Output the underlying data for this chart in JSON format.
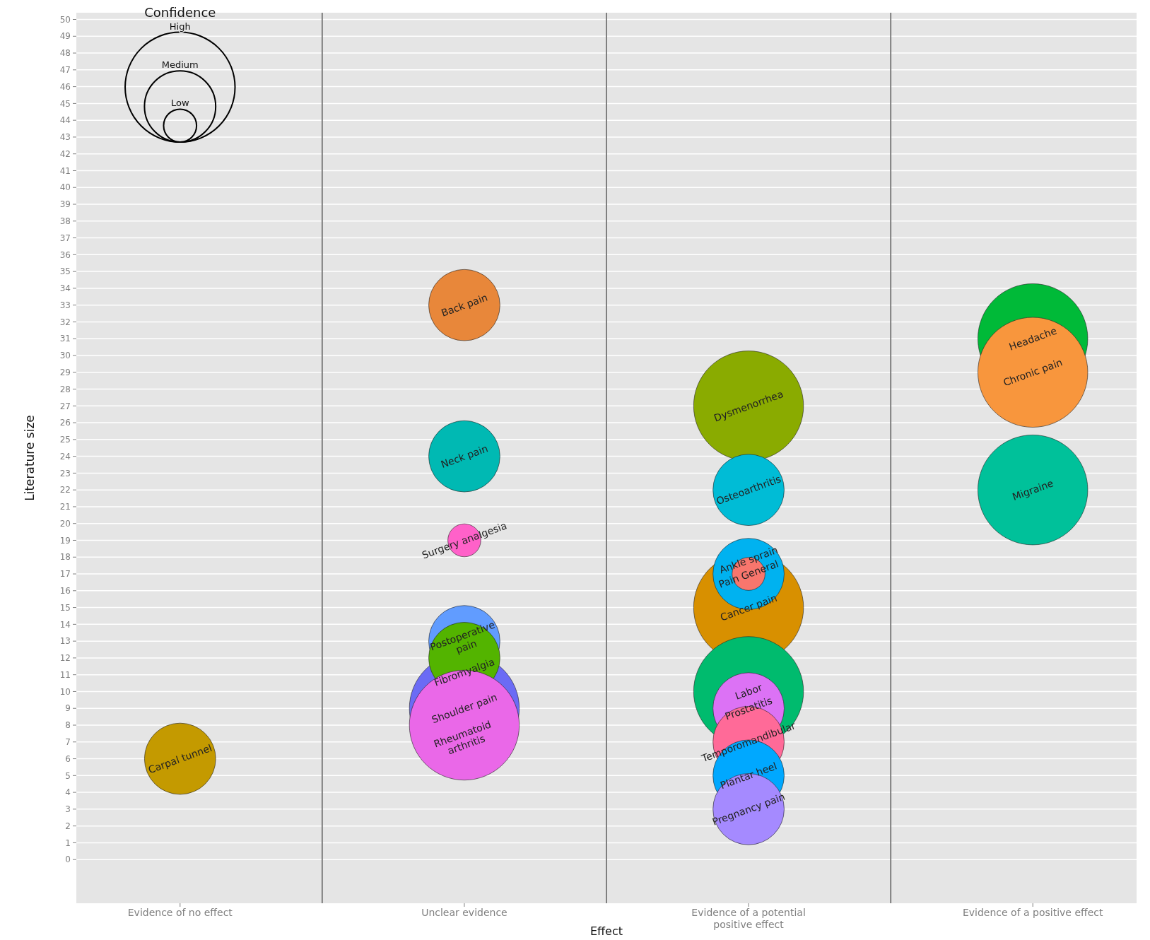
{
  "chart_data": {
    "type": "bubble",
    "xlabel": "Effect",
    "ylabel": "Literature size",
    "legend_title": "Confidence",
    "grid": "y",
    "ylim": [
      -2.6,
      50.4
    ],
    "categories": [
      "Evidence of no effect",
      "Unclear evidence",
      "Evidence of a potential\npositive effect",
      "Evidence of a positive effect"
    ],
    "yticks": [
      0,
      1,
      2,
      3,
      4,
      5,
      6,
      7,
      8,
      9,
      10,
      11,
      12,
      13,
      14,
      15,
      16,
      17,
      18,
      19,
      20,
      21,
      22,
      23,
      24,
      25,
      26,
      27,
      28,
      29,
      30,
      31,
      32,
      33,
      34,
      35,
      36,
      37,
      38,
      39,
      40,
      41,
      42,
      43,
      44,
      45,
      46,
      47,
      48,
      49,
      50
    ],
    "size_legend": [
      {
        "value": 1,
        "label": "High"
      },
      {
        "value": 0.42,
        "label": "Medium"
      },
      {
        "value": 0.09,
        "label": "Low"
      }
    ],
    "series": [
      {
        "name": "Carpal tunnel",
        "color": "#c49a00",
        "x": [
          "Evidence of no effect"
        ],
        "values": [
          6
        ],
        "sizes": [
          0.42
        ]
      },
      {
        "name": "Back pain",
        "color": "#e8873a",
        "x": [
          "Unclear evidence"
        ],
        "values": [
          33
        ],
        "sizes": [
          0.42
        ]
      },
      {
        "name": "Neck pain",
        "color": "#00b9b3",
        "x": [
          "Unclear evidence"
        ],
        "values": [
          24
        ],
        "sizes": [
          0.42
        ]
      },
      {
        "name": "Surgery analgesia",
        "color": "#ff61c9",
        "x": [
          "Unclear evidence"
        ],
        "values": [
          19
        ],
        "sizes": [
          0.09
        ]
      },
      {
        "name": "Postoperative\npain",
        "color": "#619cff",
        "x": [
          "Unclear evidence"
        ],
        "values": [
          13
        ],
        "sizes": [
          0.42
        ]
      },
      {
        "name": "Shoulder pain",
        "color": "#6b6bf5",
        "x": [
          "Unclear evidence"
        ],
        "values": [
          9
        ],
        "sizes": [
          1
        ]
      },
      {
        "name": "Fibromyalgia",
        "color": "#53b400",
        "x": [
          "Unclear evidence"
        ],
        "values": [
          12
        ],
        "sizes": [
          0.42
        ]
      },
      {
        "name": "Rheumatoid\narthritis",
        "color": "#ea68e8",
        "x": [
          "Unclear evidence"
        ],
        "values": [
          8
        ],
        "sizes": [
          1
        ]
      },
      {
        "name": "Dysmenorrhea",
        "color": "#8aab00",
        "x": [
          "Evidence of a potential\npositive effect"
        ],
        "values": [
          27
        ],
        "sizes": [
          1
        ]
      },
      {
        "name": "Osteoarthritis",
        "color": "#00bcd6",
        "x": [
          "Evidence of a potential\npositive effect"
        ],
        "values": [
          22
        ],
        "sizes": [
          0.42
        ]
      },
      {
        "name": "Cancer pain",
        "color": "#d89000",
        "x": [
          "Evidence of a potential\npositive effect"
        ],
        "values": [
          15
        ],
        "sizes": [
          1
        ]
      },
      {
        "name": "Pain General",
        "color": "#00b2f0",
        "x": [
          "Evidence of a potential\npositive effect"
        ],
        "values": [
          17
        ],
        "sizes": [
          0.42
        ]
      },
      {
        "name": "Ankle sprain",
        "color": "#f8766d",
        "x": [
          "Evidence of a potential\npositive effect"
        ],
        "values": [
          17
        ],
        "sizes": [
          0.09
        ]
      },
      {
        "name": "Labor",
        "color": "#00bb6e",
        "x": [
          "Evidence of a potential\npositive effect"
        ],
        "values": [
          10
        ],
        "sizes": [
          1
        ]
      },
      {
        "name": "Prostatitis",
        "color": "#dc72f5",
        "x": [
          "Evidence of a potential\npositive effect"
        ],
        "values": [
          9
        ],
        "sizes": [
          0.42
        ]
      },
      {
        "name": "Temporomandibular",
        "color": "#ff6a98",
        "x": [
          "Evidence of a potential\npositive effect"
        ],
        "values": [
          7
        ],
        "sizes": [
          0.42
        ]
      },
      {
        "name": "Plantar heel",
        "color": "#00a8ff",
        "x": [
          "Evidence of a potential\npositive effect"
        ],
        "values": [
          5
        ],
        "sizes": [
          0.42
        ]
      },
      {
        "name": "Pregnancy pain",
        "color": "#a58aff",
        "x": [
          "Evidence of a potential\npositive effect"
        ],
        "values": [
          3
        ],
        "sizes": [
          0.42
        ]
      },
      {
        "name": "Headache",
        "color": "#00ba38",
        "x": [
          "Evidence of a positive effect"
        ],
        "values": [
          31
        ],
        "sizes": [
          1
        ]
      },
      {
        "name": "Chronic pain",
        "color": "#f8963d",
        "x": [
          "Evidence of a positive effect"
        ],
        "values": [
          29
        ],
        "sizes": [
          1
        ]
      },
      {
        "name": "Migraine",
        "color": "#00c19a",
        "x": [
          "Evidence of a positive effect"
        ],
        "values": [
          22
        ],
        "sizes": [
          1
        ]
      }
    ]
  }
}
